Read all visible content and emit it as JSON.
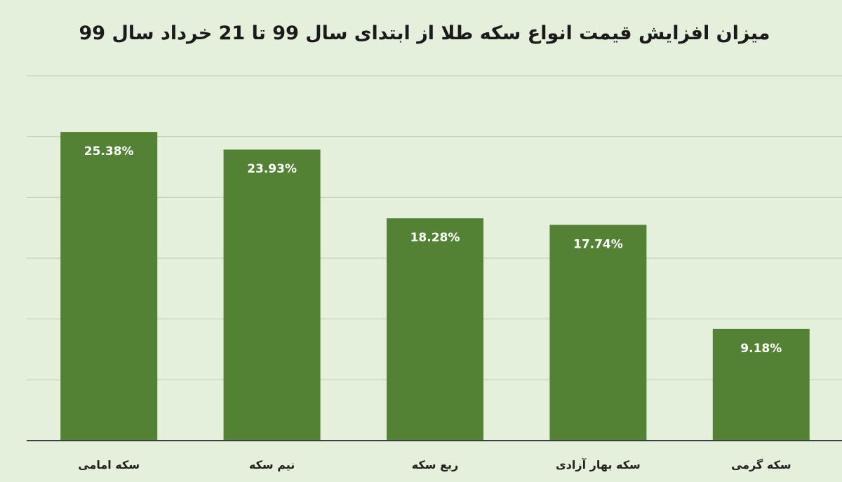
{
  "chart_data": {
    "type": "bar",
    "title": "میزان افزایش قیمت انواع سکه طلا از ابتدای سال 99 تا 21 خرداد سال 99",
    "categories": [
      "سکه امامی",
      "نیم سکه",
      "ربع سکه",
      "سکه بهار آزادی",
      "سکه گرمی"
    ],
    "values": [
      25.38,
      23.93,
      18.28,
      17.74,
      9.18
    ],
    "data_labels": [
      "25.38%",
      "23.93%",
      "18.28%",
      "17.74%",
      "9.18%"
    ],
    "ylim": [
      0,
      30
    ],
    "y_grid_step": 5,
    "grid": true,
    "legend": "none",
    "colors": {
      "background": "#e4efdc",
      "bar": "#548235",
      "grid": "#c4d0bd",
      "axis": "#404040",
      "data_label": "#ffffff",
      "title": "#1a1a1a"
    }
  }
}
